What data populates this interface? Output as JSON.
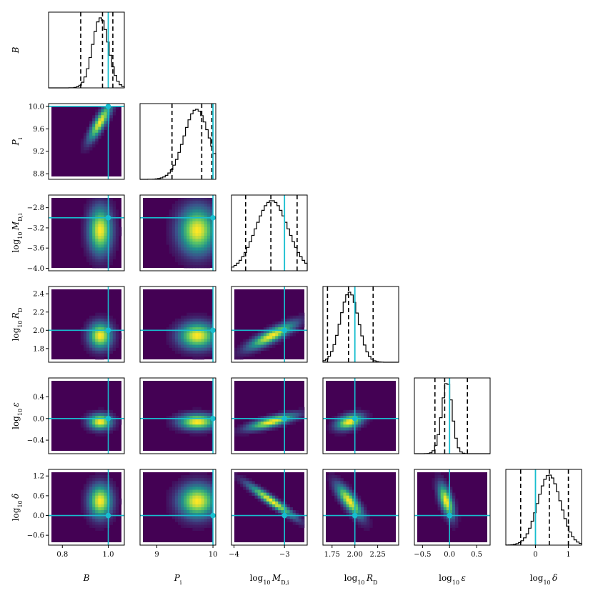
{
  "chart_data": {
    "type": "corner",
    "title": "",
    "colors": {
      "truth": "#17becf",
      "hist": "#000000",
      "quantile": "#000000",
      "cmap_low": "#440154",
      "cmap_mid": "#21918c",
      "cmap_high": "#fde725"
    },
    "grid": false,
    "legend": "none",
    "quantiles": [
      0.16,
      0.5,
      0.84
    ],
    "params": [
      {
        "key": "B",
        "label": "B",
        "prefix": "",
        "sym": "B",
        "sub": "",
        "range": [
          0.74,
          1.07
        ],
        "ticks": [
          0.8,
          1.0
        ],
        "tick_labels": [
          "0.8",
          "1.0"
        ],
        "truth": 1.0,
        "quantile_values": [
          0.88,
          0.975,
          1.02
        ],
        "mean": 0.97,
        "sd": 0.035,
        "skew": -0.3
      },
      {
        "key": "P_i",
        "label": "P_i",
        "prefix": "",
        "sym": "P",
        "sub": "i",
        "range": [
          8.7,
          10.05
        ],
        "ticks": [
          9,
          10
        ],
        "tick_labels": [
          "9",
          "10"
        ],
        "y_ticks": [
          8.8,
          9.2,
          9.6,
          10.0
        ],
        "y_tick_labels": [
          "8.8",
          "9.2",
          "9.6",
          "10.0"
        ],
        "truth": 10.0,
        "quantile_values": [
          9.27,
          9.8,
          9.98
        ],
        "mean": 9.75,
        "sd": 0.23,
        "skew": -0.6
      },
      {
        "key": "log10_MDi",
        "label": "log10 M_D,i",
        "prefix": "log",
        "sym": "M",
        "sub": "D,i",
        "range": [
          -4.05,
          -2.55
        ],
        "ticks": [
          -4,
          -3
        ],
        "tick_labels": [
          "−4",
          "−3"
        ],
        "y_ticks": [
          -4.0,
          -3.6,
          -3.2,
          -2.8
        ],
        "y_tick_labels": [
          "−4.0",
          "−3.6",
          "−3.2",
          "−2.8"
        ],
        "truth": -3.0,
        "quantile_values": [
          -3.77,
          -3.27,
          -2.75
        ],
        "mean": -3.25,
        "sd": 0.32,
        "skew": 0.0
      },
      {
        "key": "log10_RD",
        "label": "log10 R_D",
        "prefix": "log",
        "sym": "R",
        "sub": "D",
        "range": [
          1.65,
          2.48
        ],
        "ticks": [
          1.75,
          2.0,
          2.25
        ],
        "tick_labels": [
          "1.75",
          "2.00",
          "2.25"
        ],
        "y_ticks": [
          1.8,
          2.0,
          2.2,
          2.4
        ],
        "y_tick_labels": [
          "1.8",
          "2.0",
          "2.2",
          "2.4"
        ],
        "truth": 2.0,
        "quantile_values": [
          1.7,
          1.93,
          2.2
        ],
        "mean": 1.93,
        "sd": 0.1,
        "skew": 0.3
      },
      {
        "key": "log10_eps",
        "label": "log10 ε",
        "prefix": "log",
        "sym": "ε",
        "sub": "",
        "range": [
          -0.65,
          0.75
        ],
        "ticks": [
          -0.5,
          0.0,
          0.5
        ],
        "tick_labels": [
          "−0.5",
          "0.0",
          "0.5"
        ],
        "y_ticks": [
          -0.4,
          0.0,
          0.4
        ],
        "y_tick_labels": [
          "−0.4",
          "0.0",
          "0.4"
        ],
        "truth": 0.0,
        "quantile_values": [
          -0.27,
          -0.09,
          0.33
        ],
        "mean": -0.07,
        "sd": 0.1,
        "skew": 0.8
      },
      {
        "key": "log10_delta",
        "label": "log10 δ",
        "prefix": "log",
        "sym": "δ",
        "sub": "",
        "range": [
          -0.9,
          1.4
        ],
        "ticks": [
          0,
          1
        ],
        "tick_labels": [
          "0",
          "1"
        ],
        "y_ticks": [
          -0.6,
          0.0,
          0.6,
          1.2
        ],
        "y_tick_labels": [
          "−0.6",
          "0.0",
          "0.6",
          "1.2"
        ],
        "truth": 0.0,
        "quantile_values": [
          -0.45,
          0.42,
          1.0
        ],
        "mean": 0.45,
        "sd": 0.35,
        "skew": -0.3
      }
    ],
    "correlations": [
      [
        1.0,
        0.85,
        0.0,
        0.0,
        0.0,
        0.0
      ],
      [
        0.85,
        1.0,
        0.0,
        0.0,
        0.0,
        0.0
      ],
      [
        0.0,
        0.0,
        1.0,
        0.85,
        0.75,
        -0.95
      ],
      [
        0.0,
        0.0,
        0.85,
        1.0,
        0.4,
        -0.8
      ],
      [
        0.0,
        0.0,
        0.75,
        0.4,
        1.0,
        -0.6
      ],
      [
        0.0,
        0.0,
        -0.95,
        -0.8,
        -0.6,
        1.0
      ]
    ]
  }
}
